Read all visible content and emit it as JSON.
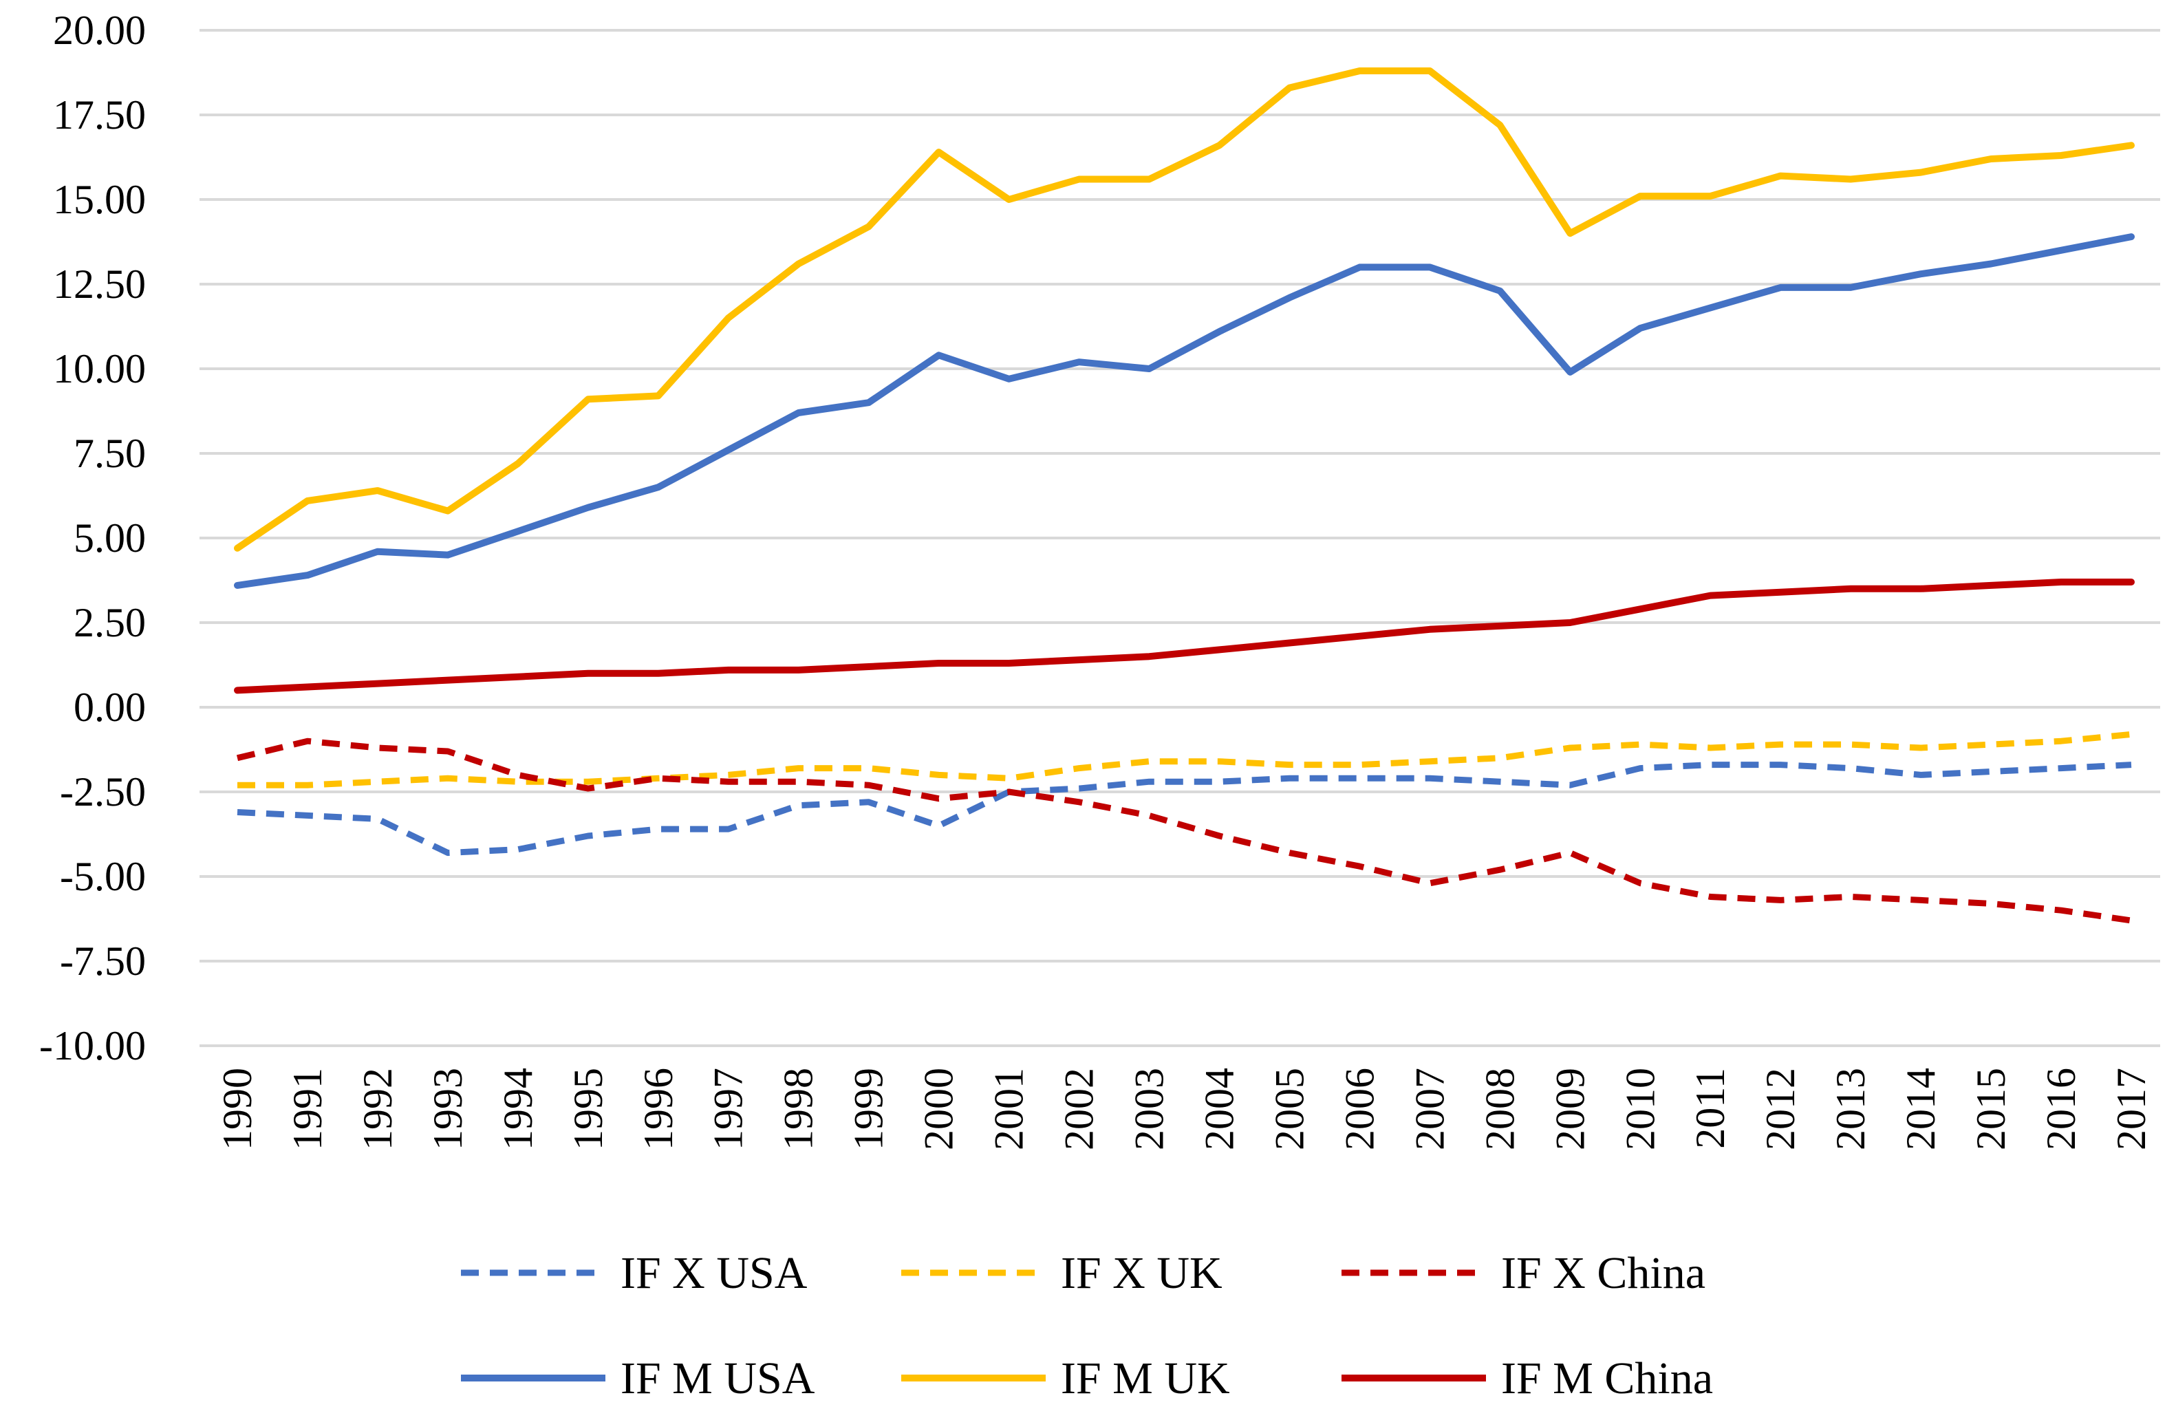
{
  "chart_data": {
    "type": "line",
    "title": "",
    "xlabel": "",
    "ylabel": "",
    "ylim": [
      -10,
      20
    ],
    "y_ticks": [
      "20.00",
      "17.50",
      "15.00",
      "12.50",
      "10.00",
      "7.50",
      "5.00",
      "2.50",
      "0.00",
      "-2.50",
      "-5.00",
      "-7.50",
      "-10.00"
    ],
    "grid": true,
    "legend_position": "bottom",
    "categories": [
      "1990",
      "1991",
      "1992",
      "1993",
      "1994",
      "1995",
      "1996",
      "1997",
      "1998",
      "1999",
      "2000",
      "2001",
      "2002",
      "2003",
      "2004",
      "2005",
      "2006",
      "2007",
      "2008",
      "2009",
      "2010",
      "2011",
      "2012",
      "2013",
      "2014",
      "2015",
      "2016",
      "2017"
    ],
    "series": [
      {
        "name": "IF X USA",
        "color": "#4472C4",
        "style": "dashed",
        "values": [
          -3.1,
          -3.2,
          -3.3,
          -4.3,
          -4.2,
          -3.8,
          -3.6,
          -3.6,
          -2.9,
          -2.8,
          -3.5,
          -2.5,
          -2.4,
          -2.2,
          -2.2,
          -2.1,
          -2.1,
          -2.1,
          -2.2,
          -2.3,
          -1.8,
          -1.7,
          -1.7,
          -1.8,
          -2.0,
          -1.9,
          -1.8,
          -1.7
        ]
      },
      {
        "name": "IF X UK",
        "color": "#FFC000",
        "style": "dashed",
        "values": [
          -2.3,
          -2.3,
          -2.2,
          -2.1,
          -2.2,
          -2.2,
          -2.1,
          -2.0,
          -1.8,
          -1.8,
          -2.0,
          -2.1,
          -1.8,
          -1.6,
          -1.6,
          -1.7,
          -1.7,
          -1.6,
          -1.5,
          -1.2,
          -1.1,
          -1.2,
          -1.1,
          -1.1,
          -1.2,
          -1.1,
          -1.0,
          -0.8
        ]
      },
      {
        "name": "IF X China",
        "color": "#C00000",
        "style": "dashed",
        "values": [
          -1.5,
          -1.0,
          -1.2,
          -1.3,
          -2.0,
          -2.4,
          -2.1,
          -2.2,
          -2.2,
          -2.3,
          -2.7,
          -2.5,
          -2.8,
          -3.2,
          -3.8,
          -4.3,
          -4.7,
          -5.2,
          -4.8,
          -4.3,
          -5.2,
          -5.6,
          -5.7,
          -5.6,
          -5.7,
          -5.8,
          -6.0,
          -6.3
        ]
      },
      {
        "name": "IF M USA",
        "color": "#4472C4",
        "style": "solid",
        "values": [
          3.6,
          3.9,
          4.6,
          4.5,
          5.2,
          5.9,
          6.5,
          7.6,
          8.7,
          9.0,
          10.4,
          9.7,
          10.2,
          10.0,
          11.1,
          12.1,
          13.0,
          13.0,
          12.3,
          9.9,
          11.2,
          11.8,
          12.4,
          12.4,
          12.8,
          13.1,
          13.5,
          13.9
        ]
      },
      {
        "name": "IF M UK",
        "color": "#FFC000",
        "style": "solid",
        "values": [
          4.7,
          6.1,
          6.4,
          5.8,
          7.2,
          9.1,
          9.2,
          11.5,
          13.1,
          14.2,
          16.4,
          15.0,
          15.6,
          15.6,
          16.6,
          18.3,
          18.8,
          18.8,
          17.2,
          14.0,
          15.1,
          15.1,
          15.7,
          15.6,
          15.8,
          16.2,
          16.3,
          16.6
        ]
      },
      {
        "name": "IF M China",
        "color": "#C00000",
        "style": "solid",
        "values": [
          0.5,
          0.6,
          0.7,
          0.8,
          0.9,
          1.0,
          1.0,
          1.1,
          1.1,
          1.2,
          1.3,
          1.3,
          1.4,
          1.5,
          1.7,
          1.9,
          2.1,
          2.3,
          2.4,
          2.5,
          2.9,
          3.3,
          3.4,
          3.5,
          3.5,
          3.6,
          3.7,
          3.7
        ]
      }
    ]
  }
}
